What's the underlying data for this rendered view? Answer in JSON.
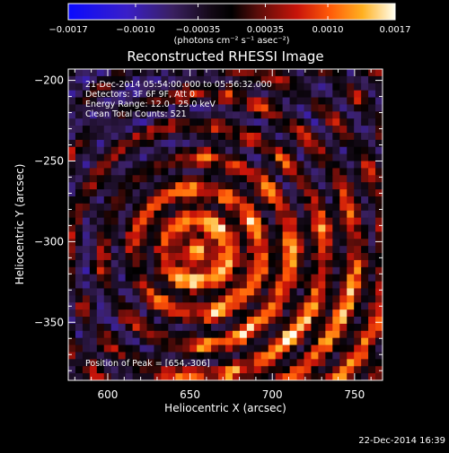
{
  "chart_data": {
    "type": "heatmap",
    "title": "Reconstructed RHESSI Image",
    "xlabel": "Heliocentric X (arcsec)",
    "ylabel": "Heliocentric Y (arcsec)",
    "x_ticks": [
      "600",
      "650",
      "700",
      "750"
    ],
    "x_tick_values": [
      600,
      650,
      700,
      750
    ],
    "y_ticks": [
      "−200",
      "−250",
      "−300",
      "−350"
    ],
    "y_tick_values": [
      -200,
      -250,
      -300,
      -350
    ],
    "xlim": [
      576,
      767
    ],
    "ylim": [
      -386,
      -193
    ],
    "colorbar": {
      "min": -0.0017,
      "max": 0.0017,
      "tick_labels": [
        "−0.0017",
        "−0.0010",
        "−0.00035",
        "0.00035",
        "0.0010",
        "0.0017"
      ],
      "tick_values": [
        -0.0017,
        -0.001,
        -0.00035,
        0.00035,
        0.001,
        0.0017
      ],
      "label": "(photons cm⁻² s⁻¹ asec⁻²)"
    },
    "annotations": [
      "21-Dec-2014 05:54:00.000 to 05:56:32.000",
      "Detectors: 3F 6F 9F, Att 0",
      "Energy Range: 12.0 - 25.0 keV",
      "Clean    Total Counts: 521"
    ],
    "peak_text": "Position of Peak = [654,-306]",
    "peak": {
      "x": 654,
      "y": -306
    }
  },
  "footer": {
    "timestamp": "22-Dec-2014 16:39"
  },
  "colors": {
    "background": "#000000",
    "text": "#ffffff"
  }
}
